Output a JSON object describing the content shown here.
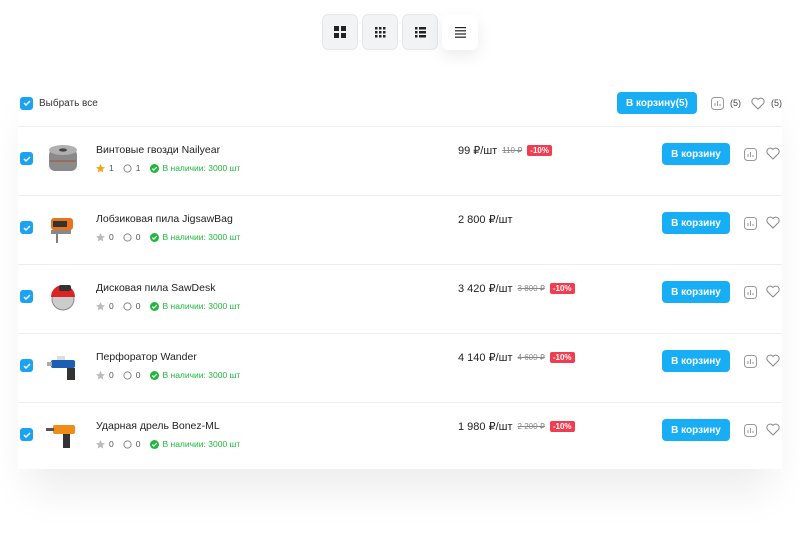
{
  "view_modes": [
    {
      "icon": "grid-large-icon"
    },
    {
      "icon": "grid-small-icon"
    },
    {
      "icon": "list-icon"
    },
    {
      "icon": "list-compact-icon",
      "active": true
    }
  ],
  "header": {
    "select_all": "Выбрать все",
    "cart_button": "В корзину(5)",
    "compare_count": "(5)",
    "favorites_count": "(5)"
  },
  "colors": {
    "accent": "#18aef5",
    "stock": "#1db83a",
    "discount": "#f23c50",
    "star_active": "#f0a818"
  },
  "items": [
    {
      "name": "Винтовые гвозди Nailyear",
      "rating": "1",
      "reviews": "1",
      "stock": "В наличии: 3000 шт",
      "price": "99 ₽/шт",
      "old_price": "110 ₽",
      "discount": "-10%",
      "cart": "В корзину",
      "star_active": true,
      "image": "nails-coil"
    },
    {
      "name": "Лобзиковая пила JigsawBag",
      "rating": "0",
      "reviews": "0",
      "stock": "В наличии: 3000 шт",
      "price": "2 800 ₽/шт",
      "old_price": "",
      "discount": "",
      "cart": "В корзину",
      "image": "jigsaw"
    },
    {
      "name": "Дисковая пила SawDesk",
      "rating": "0",
      "reviews": "0",
      "stock": "В наличии: 3000 шт",
      "price": "3 420 ₽/шт",
      "old_price": "3 800 ₽",
      "discount": "-10%",
      "cart": "В корзину",
      "image": "circular-saw"
    },
    {
      "name": "Перфоратор Wander",
      "rating": "0",
      "reviews": "0",
      "stock": "В наличии: 3000 шт",
      "price": "4 140 ₽/шт",
      "old_price": "4 600 ₽",
      "discount": "-10%",
      "cart": "В корзину",
      "image": "rotary-hammer"
    },
    {
      "name": "Ударная дрель Bonez-ML",
      "rating": "0",
      "reviews": "0",
      "stock": "В наличии: 3000 шт",
      "price": "1 980 ₽/шт",
      "old_price": "2 200 ₽",
      "discount": "-10%",
      "cart": "В корзину",
      "image": "impact-drill"
    }
  ]
}
